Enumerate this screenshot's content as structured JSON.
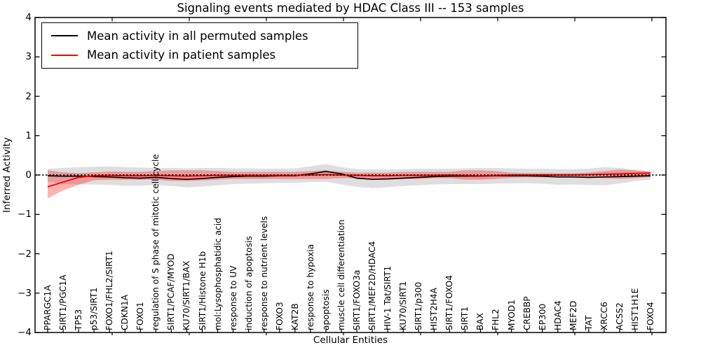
{
  "figure": {
    "title": "Signaling events mediated by HDAC Class III -- 153 samples"
  },
  "legend": {
    "entries": [
      {
        "label": "Mean activity in all permuted samples",
        "color": "#000000"
      },
      {
        "label": "Mean activity in patient samples",
        "color": "#ff0000"
      }
    ]
  },
  "chart_data": {
    "type": "line",
    "title": "Signaling events mediated by HDAC Class III -- 153 samples",
    "xlabel": "Cellular Entities",
    "ylabel": "Inferred Activity",
    "ylim": [
      -4,
      4
    ],
    "yticks": [
      4,
      3,
      2,
      1,
      0,
      -1,
      -2,
      -3,
      -4
    ],
    "grid": false,
    "legend_position": "upper left",
    "zero_line": {
      "y": 0,
      "style": "dashed",
      "color": "#000000"
    },
    "categories": [
      "PPARGC1A",
      "SIRT1/PGC1A",
      "TP53",
      "p53/SIRT1",
      "FOXO1/FHL2/SIRT1",
      "CDKN1A",
      "FOXO1",
      "regulation of S phase of mitotic cell cycle",
      "SIRT1/PCAF/MYOD",
      "KU70/SIRT1/BAX",
      "SIRT1/Histone H1b",
      "mol:Lysophosphatidic acid",
      "response to UV",
      "induction of apoptosis",
      "response to nutrient levels",
      "FOXO3",
      "KAT2B",
      "response to hypoxia",
      "apoptosis",
      "muscle cell differentiation",
      "SIRT1/FOXO3a",
      "SIRT1/MEF2D/HDAC4",
      "HIV-1 Tat/SIRT1",
      "KU70/SIRT1",
      "SIRT1/p300",
      "HIST2H4A",
      "SIRT1/FOXO4",
      "SIRT1",
      "BAX",
      "FHL2",
      "MYOD1",
      "CREBBP",
      "EP300",
      "HDAC4",
      "MEF2D",
      "TAT",
      "XRCC6",
      "ACSS2",
      "HIST1H1E",
      "FOXO4"
    ],
    "series": [
      {
        "name": "Mean activity in all permuted samples",
        "color": "#000000",
        "width": 1.7,
        "values": [
          -0.02,
          -0.03,
          -0.03,
          -0.04,
          -0.05,
          -0.07,
          -0.08,
          -0.06,
          -0.09,
          -0.11,
          -0.09,
          -0.06,
          -0.04,
          -0.03,
          -0.03,
          -0.02,
          -0.02,
          0.03,
          0.09,
          0.03,
          -0.08,
          -0.11,
          -0.1,
          -0.08,
          -0.06,
          -0.04,
          -0.03,
          -0.03,
          -0.03,
          -0.02,
          -0.02,
          -0.02,
          -0.03,
          -0.05,
          -0.05,
          -0.06,
          -0.05,
          -0.04,
          -0.03,
          -0.02
        ]
      },
      {
        "name": "Mean activity in patient samples",
        "color": "#ff0000",
        "width": 1.9,
        "values": [
          -0.3,
          -0.18,
          -0.06,
          -0.02,
          -0.01,
          -0.02,
          -0.02,
          -0.01,
          -0.02,
          -0.03,
          -0.02,
          -0.01,
          -0.01,
          -0.01,
          -0.01,
          -0.01,
          -0.01,
          0.0,
          0.01,
          0.0,
          -0.01,
          -0.02,
          -0.02,
          -0.01,
          -0.01,
          -0.01,
          0.0,
          -0.01,
          -0.02,
          -0.01,
          0.0,
          0.0,
          0.0,
          0.0,
          0.0,
          0.01,
          0.02,
          0.03,
          0.04,
          0.05
        ]
      }
    ],
    "bands": [
      {
        "name": "permuted samples std band",
        "color": "#999999",
        "opacity": 0.32,
        "upper": [
          0.16,
          0.18,
          0.2,
          0.21,
          0.22,
          0.2,
          0.19,
          0.18,
          0.18,
          0.17,
          0.18,
          0.18,
          0.17,
          0.17,
          0.16,
          0.16,
          0.17,
          0.22,
          0.28,
          0.2,
          0.15,
          0.14,
          0.14,
          0.15,
          0.16,
          0.16,
          0.16,
          0.17,
          0.18,
          0.18,
          0.17,
          0.16,
          0.16,
          0.15,
          0.15,
          0.16,
          0.2,
          0.18,
          0.13,
          0.1
        ],
        "lower": [
          -0.16,
          -0.23,
          -0.24,
          -0.24,
          -0.25,
          -0.27,
          -0.27,
          -0.25,
          -0.28,
          -0.31,
          -0.29,
          -0.26,
          -0.23,
          -0.22,
          -0.21,
          -0.2,
          -0.2,
          -0.18,
          -0.17,
          -0.24,
          -0.3,
          -0.33,
          -0.31,
          -0.28,
          -0.26,
          -0.24,
          -0.23,
          -0.23,
          -0.23,
          -0.22,
          -0.21,
          -0.21,
          -0.22,
          -0.25,
          -0.24,
          -0.25,
          -0.26,
          -0.22,
          -0.15,
          -0.12
        ]
      },
      {
        "name": "patient samples std band",
        "color": "#ff0000",
        "opacity": 0.3,
        "upper": [
          0.12,
          0.07,
          0.05,
          0.07,
          0.09,
          0.08,
          0.08,
          0.1,
          0.12,
          0.12,
          0.12,
          0.1,
          0.08,
          0.08,
          0.08,
          0.08,
          0.08,
          0.1,
          0.12,
          0.08,
          0.06,
          0.06,
          0.06,
          0.08,
          0.08,
          0.08,
          0.08,
          0.12,
          0.12,
          0.1,
          0.06,
          0.05,
          0.05,
          0.05,
          0.05,
          0.06,
          0.1,
          0.14,
          0.12,
          0.08
        ],
        "lower": [
          -0.59,
          -0.39,
          -0.25,
          -0.13,
          -0.12,
          -0.12,
          -0.12,
          -0.12,
          -0.15,
          -0.15,
          -0.14,
          -0.12,
          -0.1,
          -0.1,
          -0.1,
          -0.1,
          -0.1,
          -0.1,
          -0.1,
          -0.08,
          -0.08,
          -0.1,
          -0.1,
          -0.1,
          -0.1,
          -0.08,
          -0.08,
          -0.12,
          -0.12,
          -0.1,
          -0.07,
          -0.06,
          -0.06,
          -0.06,
          -0.06,
          -0.06,
          -0.08,
          -0.1,
          -0.08,
          -0.05
        ]
      }
    ]
  }
}
